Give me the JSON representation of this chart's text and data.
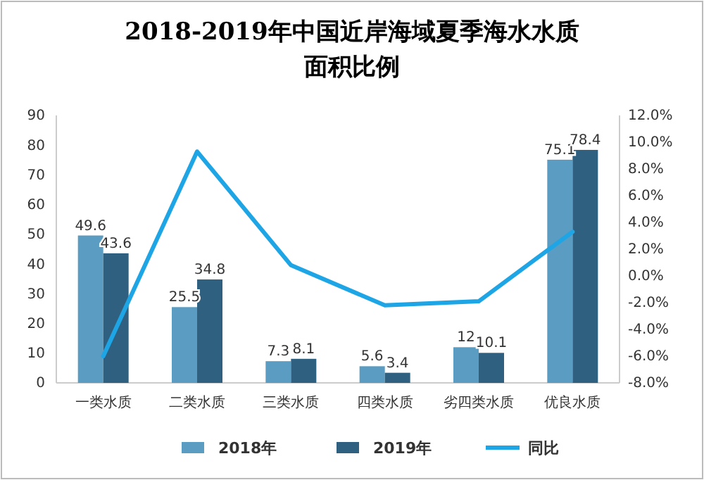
{
  "chart_data": {
    "type": "bar",
    "title": "2018-2019年中国近岸海域夏季海水水质面积比例",
    "categories": [
      "一类水质",
      "二类水质",
      "三类水质",
      "四类水质",
      "劣四类水质",
      "优良水质"
    ],
    "series": [
      {
        "name": "2018年",
        "color": "#5b9cc2",
        "values": [
          49.6,
          25.5,
          7.3,
          5.6,
          12,
          75.1
        ],
        "value_labels": [
          "49.6",
          "25.5",
          "7.3",
          "5.6",
          "12",
          "75.1"
        ]
      },
      {
        "name": "2019年",
        "color": "#2f607f",
        "values": [
          43.6,
          34.8,
          8.1,
          3.4,
          10.1,
          78.4
        ],
        "value_labels": [
          "43.6",
          "34.8",
          "8.1",
          "3.4",
          "10.1",
          "78.4"
        ]
      },
      {
        "name": "同比",
        "type": "line",
        "axis": "y2",
        "color": "#1ea5e6",
        "values": [
          -6.0,
          9.3,
          0.8,
          -2.2,
          -1.9,
          3.3
        ]
      }
    ],
    "ylim": [
      0,
      90
    ],
    "yticks": [
      0,
      10,
      20,
      30,
      40,
      50,
      60,
      70,
      80,
      90
    ],
    "y2lim": [
      -8,
      12
    ],
    "y2ticks": [
      {
        "value": -8,
        "label": "-8.0%"
      },
      {
        "value": -6,
        "label": "-6.0%"
      },
      {
        "value": -4,
        "label": "-4.0%"
      },
      {
        "value": -2,
        "label": "-2.0%"
      },
      {
        "value": 0,
        "label": "0.0%"
      },
      {
        "value": 2,
        "label": "2.0%"
      },
      {
        "value": 4,
        "label": "4.0%"
      },
      {
        "value": 6,
        "label": "6.0%"
      },
      {
        "value": 8,
        "label": "8.0%"
      },
      {
        "value": 10,
        "label": "10.0%"
      },
      {
        "value": 12,
        "label": "12.0%"
      }
    ],
    "legend": "bottom",
    "marker": "none",
    "line_style": "solid"
  }
}
